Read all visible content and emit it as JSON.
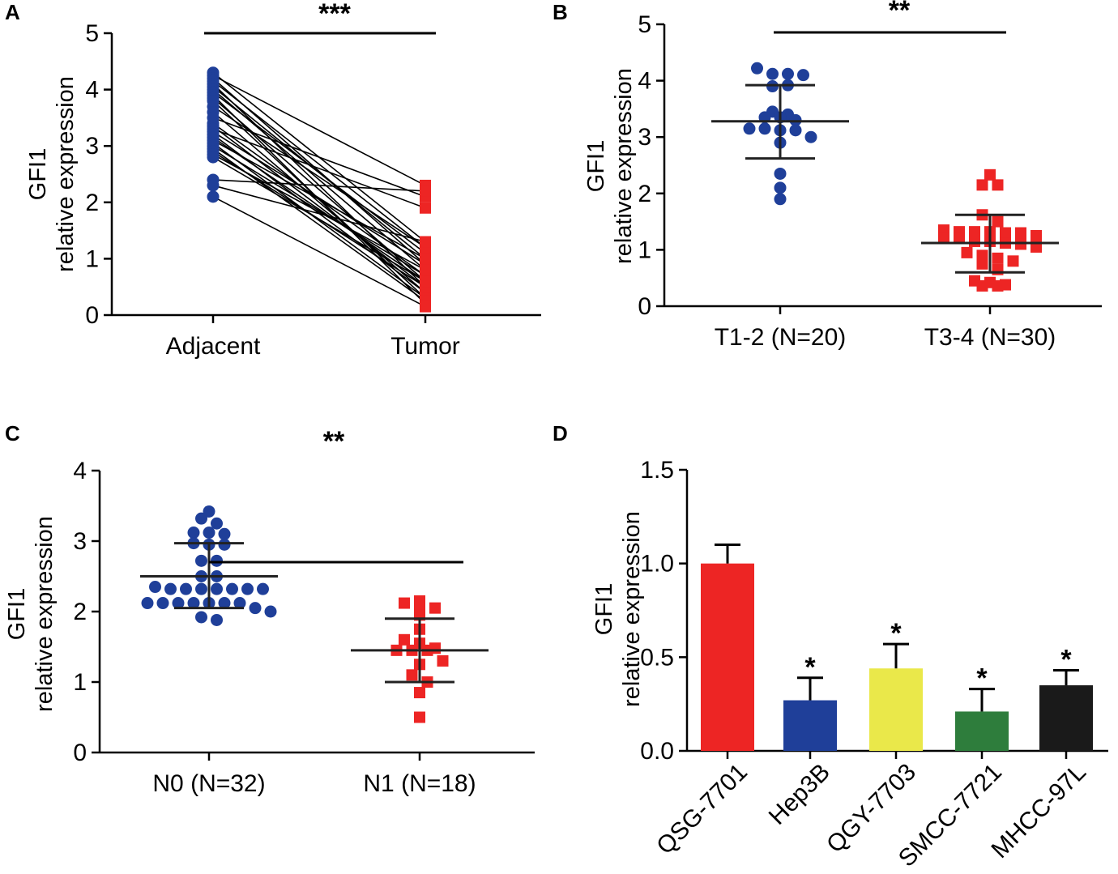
{
  "colors": {
    "blue": "#1f3f99",
    "red": "#ed2524",
    "bar_colors": [
      "#ed2524",
      "#1f3f99",
      "#eae84a",
      "#2e7d3c",
      "#1a1a1a"
    ]
  },
  "chart_data": [
    {
      "panel": "A",
      "type": "scatter",
      "subtype": "paired-line",
      "categories": [
        "Adjacent",
        "Tumor"
      ],
      "ylabel_line1": "GFI1",
      "ylabel_line2": "relative expression",
      "ylim": [
        0,
        5
      ],
      "yticks": [
        "0",
        "1",
        "2",
        "3",
        "4",
        "5"
      ],
      "significance": "***",
      "series": [
        {
          "name": "Adjacent",
          "color": "blue",
          "marker": "circle",
          "values": [
            4.3,
            4.25,
            4.2,
            4.15,
            4.1,
            4.05,
            4.0,
            3.95,
            3.9,
            3.85,
            3.8,
            3.7,
            3.6,
            3.5,
            3.4,
            3.35,
            3.3,
            3.25,
            3.2,
            3.15,
            3.1,
            3.05,
            3.0,
            2.95,
            2.9,
            2.85,
            2.8,
            2.4,
            2.3,
            2.1
          ]
        },
        {
          "name": "Tumor",
          "color": "red",
          "marker": "square",
          "values": [
            1.3,
            2.3,
            0.9,
            1.2,
            0.5,
            1.0,
            0.8,
            1.1,
            0.2,
            0.6,
            0.3,
            1.2,
            0.4,
            2.1,
            0.7,
            0.5,
            1.9,
            0.9,
            0.4,
            0.6,
            1.0,
            0.3,
            0.7,
            0.25,
            0.5,
            0.8,
            0.6,
            2.2,
            1.3,
            0.15
          ]
        }
      ]
    },
    {
      "panel": "B",
      "type": "scatter",
      "subtype": "dot-plot",
      "categories": [
        "T1-2 (N=20)",
        "T3-4 (N=30)"
      ],
      "ylabel_line1": "GFI1",
      "ylabel_line2": "relative expression",
      "ylim": [
        0,
        5
      ],
      "yticks": [
        "0",
        "1",
        "2",
        "3",
        "4",
        "5"
      ],
      "significance": "**",
      "groups": [
        {
          "name": "T1-2 (N=20)",
          "color": "blue",
          "marker": "circle",
          "mean": 3.28,
          "sd_low": 2.62,
          "sd_high": 3.92,
          "values": [
            4.22,
            4.12,
            4.12,
            4.1,
            3.9,
            3.92,
            3.45,
            3.4,
            3.35,
            3.35,
            3.3,
            3.15,
            3.15,
            3.12,
            3.12,
            3.0,
            2.9,
            2.35,
            2.1,
            1.9
          ]
        },
        {
          "name": "T3-4 (N=30)",
          "color": "red",
          "marker": "square",
          "mean": 1.12,
          "sd_low": 0.6,
          "sd_high": 1.62,
          "values": [
            2.33,
            2.15,
            2.15,
            1.62,
            1.5,
            1.35,
            1.32,
            1.32,
            1.32,
            1.3,
            1.3,
            1.25,
            1.2,
            1.2,
            1.15,
            1.15,
            1.12,
            1.1,
            1.05,
            0.95,
            0.9,
            0.85,
            0.8,
            0.75,
            0.65,
            0.45,
            0.42,
            0.38,
            0.36,
            0.36
          ]
        }
      ]
    },
    {
      "panel": "C",
      "type": "scatter",
      "subtype": "dot-plot",
      "categories": [
        "N0 (N=32)",
        "N1 (N=18)"
      ],
      "ylabel_line1": "GFI1",
      "ylabel_line2": "relative expression",
      "ylim": [
        0,
        4
      ],
      "yticks": [
        "0",
        "1",
        "2",
        "3",
        "4"
      ],
      "significance": "**",
      "groups": [
        {
          "name": "N0 (N=32)",
          "color": "blue",
          "marker": "circle",
          "mean": 2.5,
          "sd_low": 2.05,
          "sd_high": 2.97,
          "values": [
            3.42,
            3.32,
            3.25,
            3.12,
            3.12,
            3.1,
            2.97,
            2.95,
            2.95,
            2.72,
            2.72,
            2.5,
            2.5,
            2.35,
            2.32,
            2.32,
            2.32,
            2.32,
            2.32,
            2.32,
            2.32,
            2.12,
            2.12,
            2.12,
            2.12,
            2.12,
            2.12,
            2.12,
            2.05,
            2.0,
            1.92,
            1.88
          ]
        },
        {
          "name": "N1 (N=18)",
          "color": "red",
          "marker": "square",
          "mean": 1.45,
          "sd_low": 1.0,
          "sd_high": 1.9,
          "values": [
            2.15,
            2.12,
            2.1,
            2.05,
            1.95,
            1.75,
            1.6,
            1.55,
            1.48,
            1.45,
            1.45,
            1.45,
            1.3,
            1.25,
            1.1,
            1.0,
            0.85,
            0.5
          ]
        }
      ]
    },
    {
      "panel": "D",
      "type": "bar",
      "categories": [
        "QSG-7701",
        "Hep3B",
        "QGY-7703",
        "SMCC-7721",
        "MHCC-97L"
      ],
      "values": [
        1.0,
        0.27,
        0.44,
        0.21,
        0.35
      ],
      "errors": [
        0.1,
        0.12,
        0.13,
        0.12,
        0.08
      ],
      "stars": [
        "",
        "*",
        "*",
        "*",
        "*"
      ],
      "ylabel_line1": "GFI1",
      "ylabel_line2": "relative expression",
      "ylim": [
        0,
        1.5
      ],
      "yticks": [
        "0.0",
        "0.5",
        "1.0",
        "1.5"
      ]
    }
  ],
  "panel_labels": [
    "A",
    "B",
    "C",
    "D"
  ]
}
